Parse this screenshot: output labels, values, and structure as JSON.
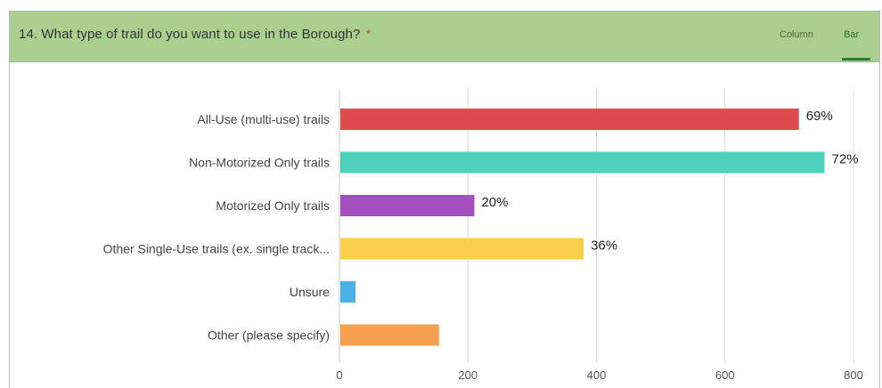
{
  "question": {
    "title": "14. What type of trail do you want to use in the Borough?",
    "required_mark": "*"
  },
  "tabs": [
    {
      "label": "Column",
      "selected": false
    },
    {
      "label": "Bar",
      "selected": true
    }
  ],
  "colors": {
    "header_bg": "#a9d08e",
    "gridline": "#d9d9d9"
  },
  "chart_data": {
    "type": "bar",
    "orientation": "horizontal",
    "categories": [
      "All-Use (multi-use) trails",
      "Non-Motorized Only trails",
      "Motorized Only trails",
      "Other Single-Use trails (ex. single track...",
      "Unsure",
      "Other (please specify)"
    ],
    "values": [
      715,
      755,
      210,
      380,
      25,
      155
    ],
    "value_labels": [
      "69%",
      "72%",
      "20%",
      "36%",
      "",
      ""
    ],
    "bar_colors": [
      "#dd4b4f",
      "#4fd1bd",
      "#a34fbf",
      "#f7cf4a",
      "#4ab1e6",
      "#f4a04e"
    ],
    "xlim": [
      0,
      800
    ],
    "xticks": [
      0,
      200,
      400,
      600,
      800
    ],
    "grid": true
  }
}
